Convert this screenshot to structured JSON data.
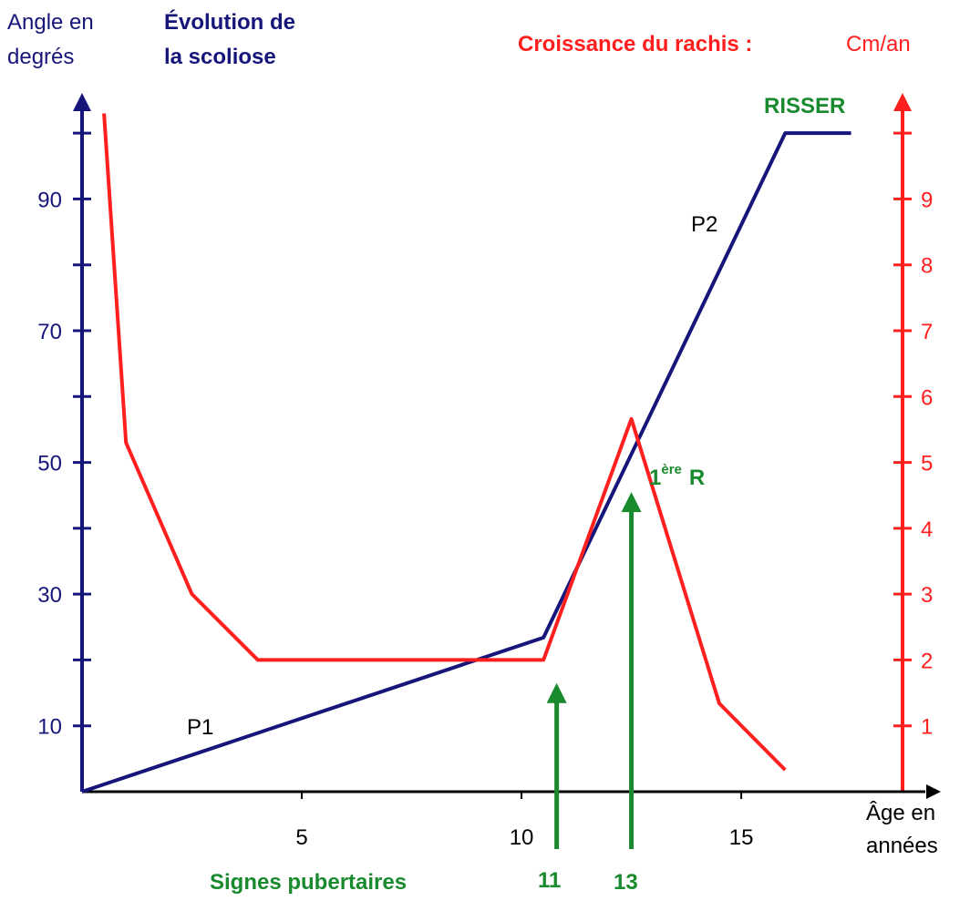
{
  "chart_data": {
    "type": "line",
    "y_label": [
      "Angle en",
      "degrés"
    ],
    "title": [
      "Évolution de",
      "la scoliose"
    ],
    "y2_label": "Croissance du rachis :",
    "y2_unit": "Cm/an",
    "x_label": [
      "Âge en",
      "années"
    ],
    "xlim": [
      0,
      19.5
    ],
    "xticks": [
      5,
      10,
      15
    ],
    "ylim": [
      0,
      105
    ],
    "yticks": [
      10,
      30,
      50,
      70,
      90
    ],
    "yticks_minor": [
      20,
      40,
      60,
      80,
      100
    ],
    "y2lim": [
      0,
      10.5
    ],
    "y2ticks": [
      1,
      2,
      3,
      4,
      5,
      6,
      7,
      8,
      9
    ],
    "y2ticks_minor": [
      10
    ],
    "series": [
      {
        "name": "Évolution de la scoliose",
        "color": "#16167a",
        "x": [
          0,
          10.5,
          16,
          17.5
        ],
        "values": [
          0,
          23.4,
          100,
          100
        ]
      },
      {
        "name": "Croissance du rachis",
        "color": "#ff1f1f",
        "axis": "y2",
        "x": [
          0.5,
          1,
          2.5,
          4,
          10.5,
          12.5,
          14.5,
          16
        ],
        "values": [
          10.3,
          5.3,
          3,
          2,
          2,
          5.66,
          1.34,
          0.33
        ]
      }
    ],
    "labels": {
      "p1": "P1",
      "p2": "P2",
      "risser": "RISSER",
      "first_r": [
        "1",
        "ère",
        "R"
      ],
      "pubertal": "Signes pubertaires",
      "age11": "11",
      "age13": "13"
    },
    "arrows": [
      {
        "x": 10.8,
        "y": 16.5
      },
      {
        "x": 12.5,
        "y": 45.5
      }
    ],
    "arrow_color": "#1a8a2e"
  }
}
